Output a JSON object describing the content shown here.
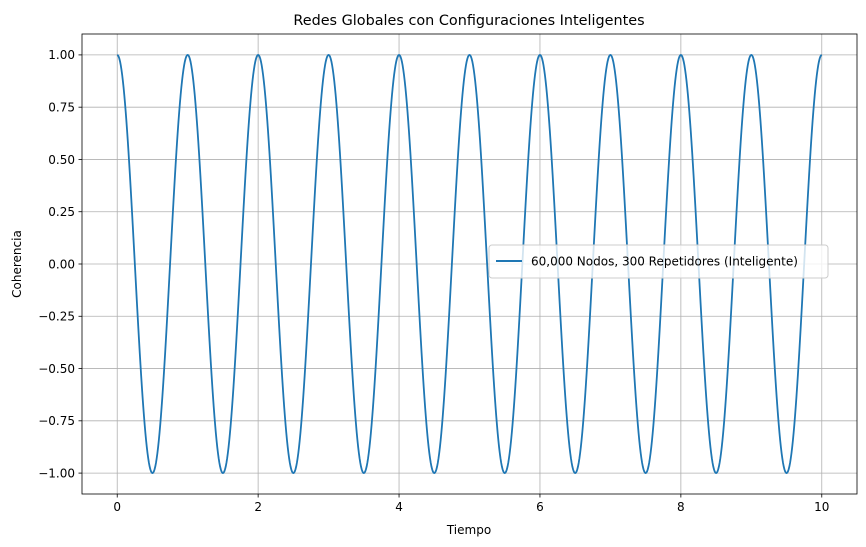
{
  "chart_data": {
    "type": "line",
    "title": "Redes Globales con Configuraciones Inteligentes",
    "xlabel": "Tiempo",
    "ylabel": "Coherencia",
    "xlim": [
      -0.5,
      10.5
    ],
    "ylim": [
      -1.1,
      1.1
    ],
    "x_ticks": [
      0,
      2,
      4,
      6,
      8,
      10
    ],
    "x_tick_labels": [
      "0",
      "2",
      "4",
      "6",
      "8",
      "10"
    ],
    "y_ticks": [
      1.0,
      0.75,
      0.5,
      0.25,
      0.0,
      -0.25,
      -0.5,
      -0.75,
      -1.0
    ],
    "y_tick_labels": [
      "1.00",
      "0.75",
      "0.50",
      "0.25",
      "0.00",
      "−0.25",
      "−0.50",
      "−0.75",
      "−1.00"
    ],
    "grid": true,
    "legend_position": "center-right",
    "series": [
      {
        "name": "60,000 Nodos, 300 Repetidores (Inteligente)",
        "color": "#1f77b4",
        "function": "cos(2*pi*t)",
        "x_range": [
          0,
          10
        ],
        "points": [
          [
            0,
            1.0
          ],
          [
            0.5,
            -1.0
          ],
          [
            1,
            1.0
          ],
          [
            1.5,
            -1.0
          ],
          [
            2,
            1.0
          ],
          [
            2.5,
            -1.0
          ],
          [
            3,
            1.0
          ],
          [
            3.5,
            -1.0
          ],
          [
            4,
            1.0
          ],
          [
            4.5,
            -1.0
          ],
          [
            5,
            1.0
          ],
          [
            5.5,
            -1.0
          ],
          [
            6,
            1.0
          ],
          [
            6.5,
            -1.0
          ],
          [
            7,
            1.0
          ],
          [
            7.5,
            -1.0
          ],
          [
            8,
            1.0
          ],
          [
            8.5,
            -1.0
          ],
          [
            9,
            1.0
          ],
          [
            9.5,
            -1.0
          ],
          [
            10,
            1.0
          ]
        ]
      }
    ]
  }
}
